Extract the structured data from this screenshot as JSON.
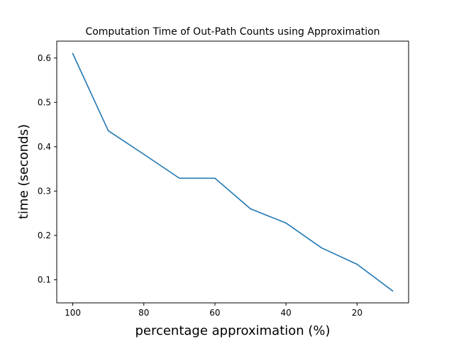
{
  "chart_data": {
    "type": "line",
    "title": "Computation Time of Out-Path Counts using Approximation",
    "xlabel": "percentage approximation (%)",
    "ylabel": "time (seconds)",
    "xlim": [
      104.5,
      5.5
    ],
    "ylim": [
      0.048,
      0.638
    ],
    "x_inverted": true,
    "xticks": [
      100,
      80,
      60,
      40,
      20
    ],
    "yticks": [
      0.1,
      0.2,
      0.3,
      0.4,
      0.5,
      0.6
    ],
    "grid": false,
    "series": [
      {
        "color": "#1f77b4",
        "x": [
          100,
          90,
          80,
          70,
          60,
          50,
          40,
          30,
          20,
          10
        ],
        "y": [
          0.61,
          0.436,
          0.383,
          0.329,
          0.329,
          0.26,
          0.228,
          0.172,
          0.135,
          0.075
        ]
      }
    ]
  }
}
